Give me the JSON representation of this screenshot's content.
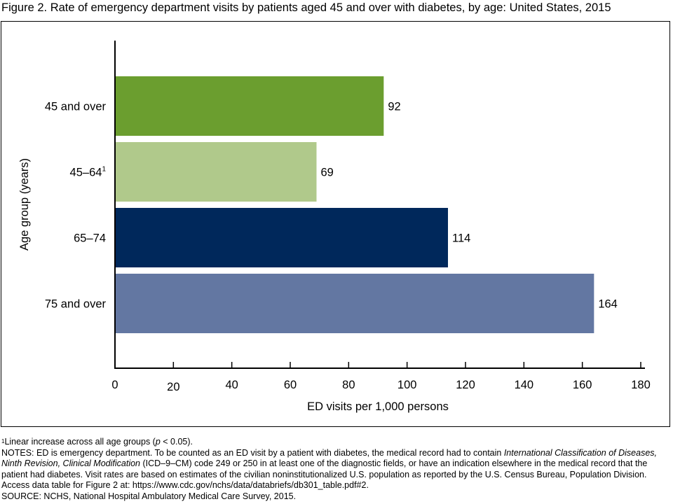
{
  "figure_title": "Figure 2. Rate of emergency department visits by patients aged 45 and over with diabetes, by age: United States, 2015",
  "chart_data": {
    "type": "bar",
    "orientation": "horizontal",
    "categories": [
      "45 and over",
      "45–64",
      "65–74",
      "75 and over"
    ],
    "category_superscripts": [
      "",
      "1",
      "",
      ""
    ],
    "values": [
      92,
      69,
      114,
      164
    ],
    "data_labels": [
      "92",
      "69",
      "114",
      "164"
    ],
    "bar_colors": [
      "#6b9e2f",
      "#b0c98b",
      "#00285b",
      "#6377a2"
    ],
    "xlabel": "ED visits per 1,000 persons",
    "ylabel": "Age group (years)",
    "xlim": [
      0,
      180
    ],
    "xticks": [
      0,
      20,
      40,
      60,
      80,
      100,
      120,
      140,
      160,
      180
    ],
    "xtick_labels": [
      "0",
      "20",
      "40",
      "60",
      "80",
      "100",
      "120",
      "140",
      "160",
      "180"
    ],
    "grid": false,
    "legend": "none"
  },
  "notes": {
    "footnote_marker": "1",
    "footnote_text_before": "Linear increase across all age groups (",
    "footnote_p": "p",
    "footnote_text_after": " < 0.05).",
    "notes_1": "NOTES: ED is emergency department. To be counted as an ED visit by a patient with diabetes, the medical record had to contain ",
    "notes_italic": "International Classification of Diseases, Ninth Revision, Clinical Modification",
    "notes_2": " (ICD–9–CM) code 249 or 250 in at least one of the diagnostic fields, or have an indication elsewhere in the medical record that the patient had diabetes. Visit rates are based on estimates of the civilian noninstitutionalized U.S. population as reported by the U.S. Census Bureau, Population Division. Access data table for Figure 2 at: https://www.cdc.gov/nchs/data/databriefs/db301_table.pdf#2.",
    "source": "SOURCE: NCHS, National Hospital Ambulatory Medical Care Survey, 2015."
  }
}
